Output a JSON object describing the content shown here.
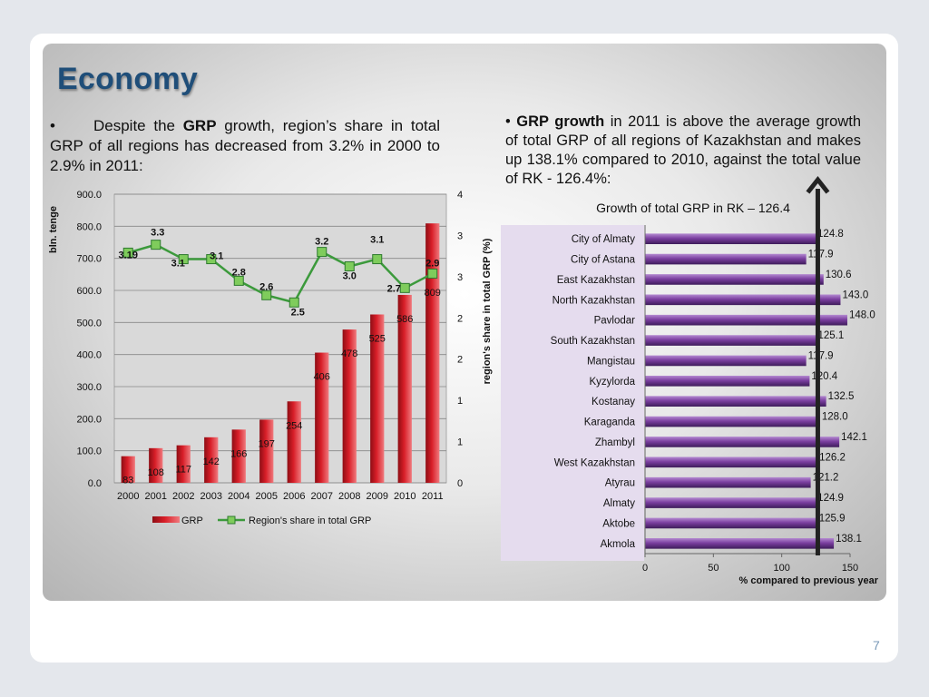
{
  "slide": {
    "title": "Economy",
    "page_number": "7",
    "left_text": {
      "bullet": "•",
      "part1": "Despite the ",
      "bold": "GRP",
      "part2": " growth, region’s share in total GRP of all regions has decreased from 3.2% in 2000 to 2.9% in 2011:"
    },
    "right_text": {
      "bullet": "• ",
      "bold": "GRP growth",
      "part2": " in 2011 is above the average growth of total GRP of all regions of Kazakhstan and makes up 138.1% compared to 2010, against the total value of RK - 126.4%:"
    }
  },
  "colors": {
    "bar_red": "#d81e28",
    "line_green": "#3c9a3c",
    "marker_green": "#7fcc5c",
    "bar_purple": "#7b3fa0",
    "category_panel": "#e5dcee",
    "arrow": "#222222",
    "title_blue": "#1f4e79"
  },
  "chart_data": [
    {
      "type": "bar",
      "title": "",
      "categories": [
        "2000",
        "2001",
        "2002",
        "2003",
        "2004",
        "2005",
        "2006",
        "2007",
        "2008",
        "2009",
        "2010",
        "2011"
      ],
      "ylabel": "bln. tenge",
      "ylabel_secondary": "region's share in total GRP (%)",
      "ylim": [
        0,
        900
      ],
      "yticks": [
        "0.0",
        "100.0",
        "200.0",
        "300.0",
        "400.0",
        "500.0",
        "600.0",
        "700.0",
        "800.0",
        "900.0"
      ],
      "ylim_secondary": [
        0,
        4
      ],
      "yticks_secondary": [
        "0",
        "1",
        "1",
        "2",
        "2",
        "3",
        "3",
        "4"
      ],
      "legend_position": "bottom",
      "series": [
        {
          "name": "GRP",
          "type": "bar",
          "values": [
            83,
            108,
            117,
            142,
            166,
            197,
            254,
            406,
            478,
            525,
            586,
            809
          ],
          "labels": [
            "83",
            "108",
            "117",
            "142",
            "166",
            "197",
            "254",
            "406",
            "478",
            "525",
            "586",
            "809"
          ]
        },
        {
          "name": "Region's share in total GRP",
          "type": "line",
          "axis": "secondary",
          "values": [
            3.19,
            3.3,
            3.1,
            3.1,
            2.8,
            2.6,
            2.5,
            3.2,
            3.0,
            3.1,
            2.7,
            2.9
          ],
          "labels": [
            "3.19",
            "3.3",
            "3.1",
            "3.1",
            "2.8",
            "2.6",
            "2.5",
            "3.2",
            "3.0",
            "3.1",
            "2.7",
            "2.9"
          ]
        }
      ]
    },
    {
      "type": "bar",
      "orientation": "horizontal",
      "title": "Growth of total GRP in RK – 126.4",
      "xlabel": "% compared to previous year",
      "xlim": [
        0,
        150
      ],
      "xticks": [
        "0",
        "50",
        "100",
        "150"
      ],
      "reference_value": 126.4,
      "categories": [
        "City of Almaty",
        "City of Astana",
        "East Kazakhstan",
        "North Kazakhstan",
        "Pavlodar",
        "South Kazakhstan",
        "Mangistau",
        "Kyzylorda",
        "Kostanay",
        "Karaganda",
        "Zhambyl",
        "West Kazakhstan",
        "Atyrau",
        "Almaty",
        "Aktobe",
        "Akmola"
      ],
      "values": [
        124.8,
        117.9,
        130.6,
        143.0,
        148.0,
        125.1,
        117.9,
        120.4,
        132.5,
        128.0,
        142.1,
        126.2,
        121.2,
        124.9,
        125.9,
        138.1
      ],
      "labels": [
        "124.8",
        "117.9",
        "130.6",
        "143.0",
        "148.0",
        "125.1",
        "117.9",
        "120.4",
        "132.5",
        "128.0",
        "142.1",
        "126.2",
        "121.2",
        "124.9",
        "125.9",
        "138.1"
      ]
    }
  ]
}
